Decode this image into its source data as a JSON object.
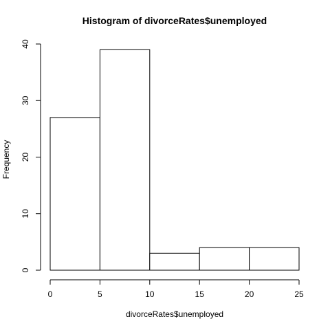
{
  "chart_data": {
    "type": "bar",
    "title": "Histogram of divorceRates$unemployed",
    "xlabel": "divorceRates$unemployed",
    "ylabel": "Frequency",
    "bins": [
      {
        "start": 0,
        "end": 5,
        "count": 27
      },
      {
        "start": 5,
        "end": 10,
        "count": 39
      },
      {
        "start": 10,
        "end": 15,
        "count": 3
      },
      {
        "start": 15,
        "end": 20,
        "count": 4
      },
      {
        "start": 20,
        "end": 25,
        "count": 4
      }
    ],
    "xlim": [
      0,
      25
    ],
    "ylim": [
      0,
      40
    ],
    "x_ticks": [
      0,
      5,
      10,
      15,
      20,
      25
    ],
    "y_ticks": [
      0,
      10,
      20,
      30,
      40
    ],
    "grid": false,
    "legend": "none"
  }
}
